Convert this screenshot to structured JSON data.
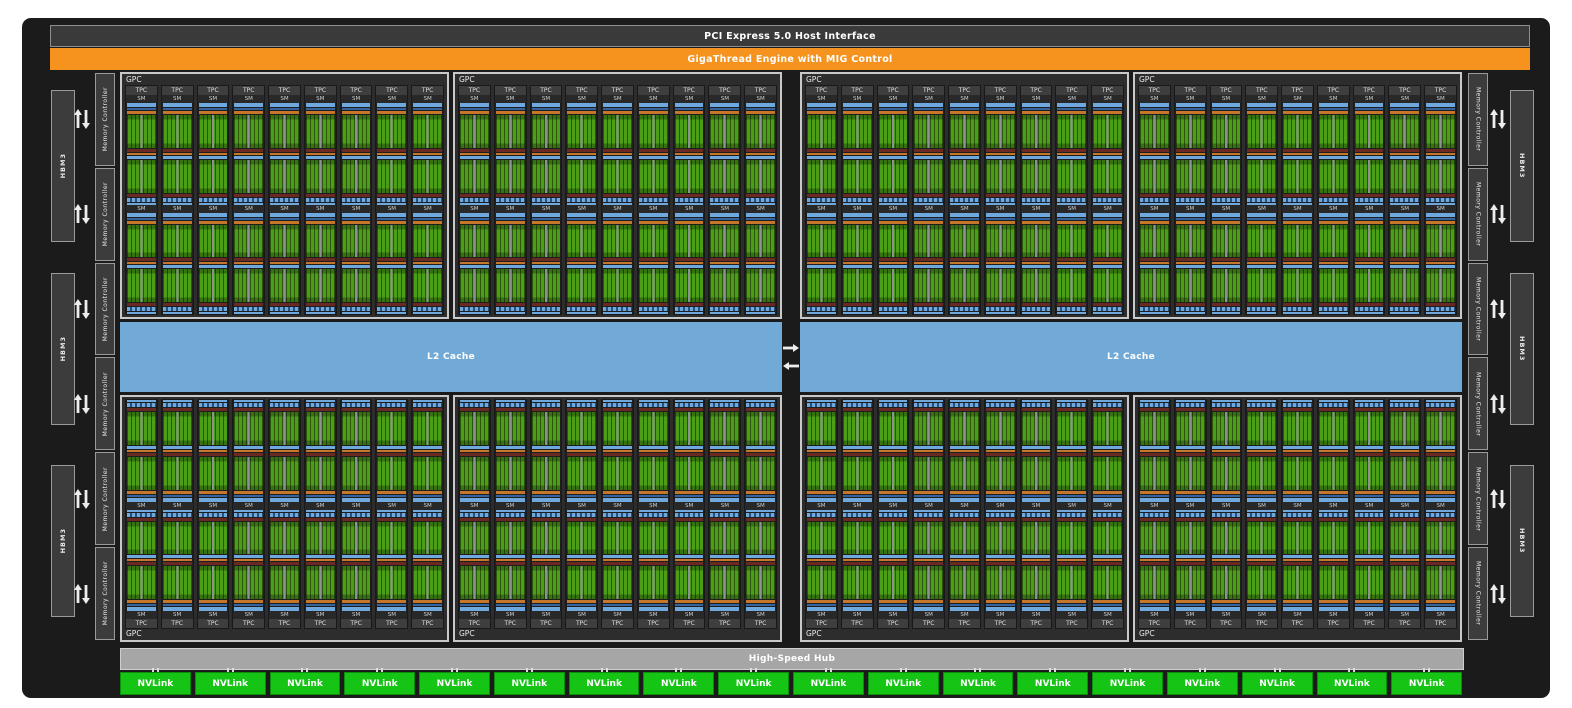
{
  "bars": {
    "pci": "PCI Express 5.0 Host Interface",
    "gigathread": "GigaThread Engine with MIG Control"
  },
  "labels": {
    "gpc": "GPC",
    "tpc": "TPC",
    "sm": "SM",
    "l2": "L2 Cache",
    "hub": "High-Speed Hub",
    "nvlink": "NVLink",
    "hbm": "HBM3",
    "memctl": "Memory Controller"
  },
  "structure": {
    "gpc_rows": 2,
    "gpc_cols_per_half": 2,
    "halves": 2,
    "tpc_per_gpc": 9,
    "sm_per_tpc": 2,
    "l2_blocks": 2,
    "nvlink_count": 18,
    "hbm_stacks_per_side": 3,
    "memory_controllers_per_side": 6
  },
  "icons": {
    "hbm_link": "double-vertical-arrow-icon",
    "l2_link_right": "right-arrow-icon",
    "l2_link_left": "left-arrow-icon",
    "nvlink_connector": "double-bar-connector-icon"
  },
  "colors": {
    "page_background": "#FFFFFF",
    "die_background": "#1B1B1B",
    "pci_bar_fill": "#3A3A3A",
    "gigathread_orange": "#F6921E",
    "l2_cache_blue": "#72AAD7",
    "nvlink_green": "#15C415",
    "hub_gray": "#A6A6A6",
    "sm_green": "#4C9E17",
    "sm_bar_blue": "#6FA8DC",
    "sm_bar_dark_blue": "#34639E",
    "sm_bar_orange": "#C4762A",
    "sm_bar_maroon": "#6B2923",
    "block_fill_dark": "#3C3C3C",
    "gpc_border_light": "#C9C9C9"
  }
}
